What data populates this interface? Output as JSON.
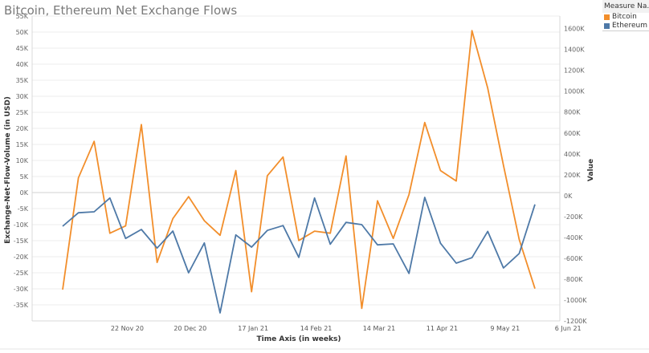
{
  "title": "Bitcoin, Ethereum Net Exchange Flows",
  "legend": {
    "title": "Measure Na...",
    "items": [
      {
        "label": "Bitcoin",
        "color": "#f28e2b"
      },
      {
        "label": "Ethereum",
        "color": "#4e79a7"
      }
    ]
  },
  "chart_data": {
    "type": "line",
    "title": "Bitcoin, Ethereum Net Exchange Flows",
    "xlabel": "Time Axis (in weeks)",
    "ylabel": "Exchange-Net-Flow-Volume (in USD)",
    "y2label": "Value",
    "xtick_labels": [
      "22 Nov 20",
      "20 Dec 20",
      "17 Jan 21",
      "14 Feb 21",
      "14 Mar 21",
      "11 Apr 21",
      "9 May 21",
      "6 Jun 21"
    ],
    "xtick_weeks": [
      4,
      8,
      12,
      16,
      20,
      24,
      28,
      32
    ],
    "x_weeks": [
      0,
      1,
      2,
      3,
      4,
      5,
      6,
      7,
      8,
      9,
      10,
      11,
      12,
      13,
      14,
      15,
      16,
      17,
      18,
      19,
      20,
      21,
      22,
      23,
      24,
      25,
      26,
      27,
      28,
      29,
      30,
      31,
      32,
      33
    ],
    "ylim": [
      -40000,
      55000
    ],
    "yticks": [
      -35000,
      -30000,
      -25000,
      -20000,
      -15000,
      -10000,
      -5000,
      0,
      5000,
      10000,
      15000,
      20000,
      25000,
      30000,
      35000,
      40000,
      45000,
      50000,
      55000
    ],
    "ytick_labels": [
      "-35K",
      "-30K",
      "-25K",
      "-20K",
      "-15K",
      "-10K",
      "-5K",
      "0K",
      "5K",
      "10K",
      "15K",
      "20K",
      "25K",
      "30K",
      "35K",
      "40K",
      "45K",
      "50K",
      "55K"
    ],
    "y2lim": [
      -1200000,
      1720000
    ],
    "y2ticks": [
      -1200000,
      -1000000,
      -800000,
      -600000,
      -400000,
      -200000,
      0,
      200000,
      400000,
      600000,
      800000,
      1000000,
      1200000,
      1400000,
      1600000
    ],
    "y2tick_labels": [
      "-1200K",
      "-1000K",
      "-800K",
      "-600K",
      "-400K",
      "-200K",
      "0K",
      "200K",
      "400K",
      "600K",
      "800K",
      "1000K",
      "1200K",
      "1400K",
      "1600K"
    ],
    "series": [
      {
        "name": "Bitcoin",
        "axis": "right",
        "color": "#f28e2b",
        "values": [
          -900000,
          170000,
          520000,
          -360000,
          -290000,
          680000,
          -640000,
          -220000,
          -10000,
          -240000,
          -380000,
          240000,
          -920000,
          190000,
          370000,
          -430000,
          -340000,
          -360000,
          380000,
          -1080000,
          -50000,
          -410000,
          10000,
          700000,
          240000,
          140000,
          1580000,
          1030000,
          290000,
          -420000,
          -890000
        ],
        "x_start": 0
      },
      {
        "name": "Ethereum",
        "axis": "left",
        "color": "#4e79a7",
        "values": [
          -10500,
          -6300,
          -6000,
          -1700,
          -14300,
          -11500,
          -17300,
          -12000,
          -25000,
          -15700,
          -37500,
          -13200,
          -17000,
          -11800,
          -10300,
          -20200,
          -1700,
          -16100,
          -9300,
          -10000,
          -16300,
          -16000,
          -25200,
          -1500,
          -15800,
          -22000,
          -20300,
          -12100,
          -23500,
          -19000,
          -3700
        ],
        "x_start": 0
      }
    ],
    "grid": true,
    "legend_position": "top-right"
  }
}
